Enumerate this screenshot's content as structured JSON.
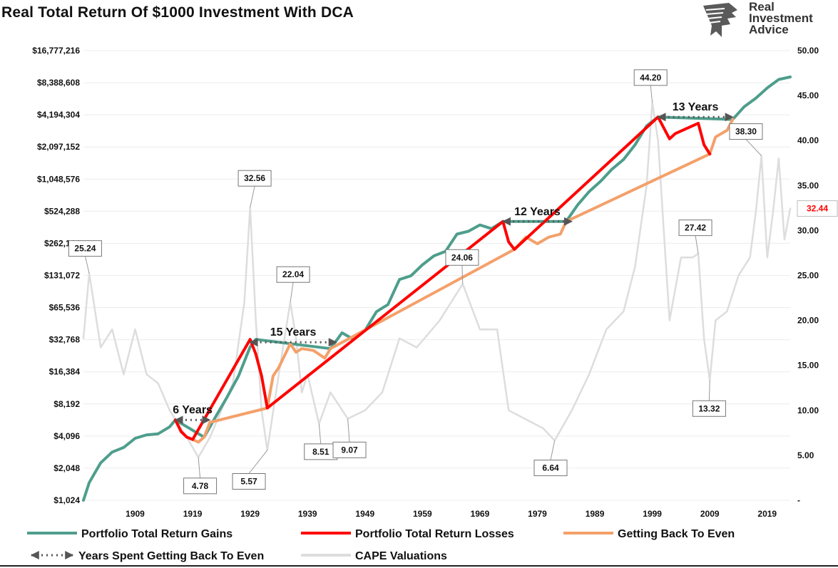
{
  "title": "Real Total Return Of $1000 Investment With DCA",
  "logo": {
    "line1": "Real",
    "line2": "Investment",
    "line3": "Advice"
  },
  "chart_data": {
    "type": "line",
    "title": "Real Total Return Of $1000 Investment With DCA",
    "left_axis": {
      "scale": "log2",
      "ylim": [
        1024,
        16777216
      ],
      "tick_labels": [
        "$16,777,216",
        "$8,388,608",
        "$4,194,304",
        "$2,097,152",
        "$1,048,576",
        "$524,288",
        "$262,144",
        "$131,072",
        "$65,536",
        "$32,768",
        "$16,384",
        "$8,192",
        "$4,096",
        "$2,048",
        "$1,024"
      ]
    },
    "right_axis": {
      "ylim": [
        0,
        50
      ],
      "tick_labels": [
        "50.00",
        "45.00",
        "40.00",
        "35.00",
        "30.00",
        "25.00",
        "20.00",
        "15.00",
        "10.00",
        "5.00",
        "-"
      ]
    },
    "x_axis": {
      "xlim": [
        1900,
        2023
      ],
      "tick_labels": [
        "1909",
        "1919",
        "1929",
        "1939",
        "1949",
        "1959",
        "1969",
        "1979",
        "1989",
        "1999",
        "2009",
        "2019"
      ]
    },
    "grid": true,
    "series": [
      {
        "name": "Portfolio Total Return Gains",
        "color": "#4e9e8c",
        "axis": "left",
        "points": [
          [
            1900,
            1024
          ],
          [
            1901,
            1500
          ],
          [
            1903,
            2300
          ],
          [
            1905,
            2900
          ],
          [
            1907,
            3200
          ],
          [
            1909,
            3900
          ],
          [
            1911,
            4200
          ],
          [
            1913,
            4300
          ],
          [
            1915,
            5000
          ],
          [
            1916,
            5800
          ],
          [
            1921,
            4000
          ],
          [
            1923,
            6200
          ],
          [
            1925,
            9500
          ],
          [
            1927,
            15000
          ],
          [
            1929,
            28000
          ],
          [
            1930,
            33000
          ],
          [
            1943,
            27000
          ],
          [
            1945,
            38000
          ],
          [
            1947,
            33000
          ],
          [
            1949,
            40000
          ],
          [
            1951,
            60000
          ],
          [
            1953,
            70000
          ],
          [
            1955,
            120000
          ],
          [
            1957,
            130000
          ],
          [
            1959,
            165000
          ],
          [
            1961,
            200000
          ],
          [
            1963,
            220000
          ],
          [
            1965,
            320000
          ],
          [
            1967,
            340000
          ],
          [
            1969,
            390000
          ],
          [
            1971,
            360000
          ],
          [
            1973,
            420000
          ],
          [
            1984,
            420000
          ],
          [
            1986,
            600000
          ],
          [
            1988,
            800000
          ],
          [
            1990,
            1000000
          ],
          [
            1992,
            1300000
          ],
          [
            1994,
            1600000
          ],
          [
            1996,
            2200000
          ],
          [
            1998,
            3300000
          ],
          [
            2000,
            4000000
          ],
          [
            2013,
            3800000
          ],
          [
            2015,
            5000000
          ],
          [
            2017,
            6000000
          ],
          [
            2019,
            7500000
          ],
          [
            2021,
            9000000
          ],
          [
            2023,
            9500000
          ]
        ]
      },
      {
        "name": "Portfolio Total Return Losses",
        "color": "#ff0000",
        "axis": "left",
        "points": [
          [
            1916,
            5800
          ],
          [
            1917,
            4500
          ],
          [
            1918,
            4000
          ],
          [
            1919,
            3800
          ],
          [
            1929,
            33000
          ],
          [
            1930,
            24000
          ],
          [
            1931,
            15000
          ],
          [
            1932,
            7500
          ],
          [
            1973,
            420000
          ],
          [
            1974,
            270000
          ],
          [
            1975,
            230000
          ],
          [
            2000,
            4000000
          ],
          [
            2002,
            2500000
          ],
          [
            2003,
            2800000
          ],
          [
            2007,
            3500000
          ],
          [
            2008,
            2200000
          ],
          [
            2009,
            1800000
          ]
        ]
      },
      {
        "name": "Getting Back To Even",
        "color": "#f4a06a",
        "axis": "left",
        "points": [
          [
            1919,
            3800
          ],
          [
            1920,
            3600
          ],
          [
            1921,
            4000
          ],
          [
            1922,
            5500
          ],
          [
            1932,
            7500
          ],
          [
            1933,
            15000
          ],
          [
            1934,
            18000
          ],
          [
            1936,
            30000
          ],
          [
            1937,
            25000
          ],
          [
            1938,
            27000
          ],
          [
            1940,
            26000
          ],
          [
            1942,
            22000
          ],
          [
            1943,
            27000
          ],
          [
            1975,
            230000
          ],
          [
            1977,
            300000
          ],
          [
            1979,
            260000
          ],
          [
            1981,
            300000
          ],
          [
            1983,
            320000
          ],
          [
            1984,
            420000
          ],
          [
            2009,
            1800000
          ],
          [
            2010,
            2600000
          ],
          [
            2012,
            3000000
          ],
          [
            2013,
            3800000
          ]
        ]
      },
      {
        "name": "CAPE Valuations",
        "color": "#dddddd",
        "axis": "right",
        "points": [
          [
            1900,
            18
          ],
          [
            1901,
            25.24
          ],
          [
            1903,
            17
          ],
          [
            1905,
            19
          ],
          [
            1907,
            14
          ],
          [
            1909,
            19
          ],
          [
            1911,
            14
          ],
          [
            1913,
            13
          ],
          [
            1915,
            10
          ],
          [
            1918,
            7
          ],
          [
            1920,
            4.78
          ],
          [
            1922,
            7
          ],
          [
            1924,
            10
          ],
          [
            1926,
            13
          ],
          [
            1928,
            22
          ],
          [
            1929,
            32.56
          ],
          [
            1930,
            20
          ],
          [
            1931,
            10
          ],
          [
            1932,
            5.57
          ],
          [
            1934,
            14
          ],
          [
            1936,
            22.04
          ],
          [
            1937,
            18
          ],
          [
            1938,
            12
          ],
          [
            1939,
            14
          ],
          [
            1941,
            8.51
          ],
          [
            1943,
            12
          ],
          [
            1946,
            9.07
          ],
          [
            1949,
            10
          ],
          [
            1952,
            12
          ],
          [
            1955,
            18
          ],
          [
            1958,
            17
          ],
          [
            1962,
            20
          ],
          [
            1966,
            24.06
          ],
          [
            1969,
            19
          ],
          [
            1972,
            19
          ],
          [
            1974,
            10
          ],
          [
            1977,
            9
          ],
          [
            1980,
            8
          ],
          [
            1982,
            6.64
          ],
          [
            1985,
            10
          ],
          [
            1988,
            14
          ],
          [
            1991,
            19
          ],
          [
            1994,
            21
          ],
          [
            1996,
            26
          ],
          [
            1998,
            35
          ],
          [
            1999,
            44.2
          ],
          [
            2000,
            40
          ],
          [
            2001,
            30
          ],
          [
            2002,
            20
          ],
          [
            2004,
            27
          ],
          [
            2006,
            27
          ],
          [
            2007,
            27.42
          ],
          [
            2008,
            18
          ],
          [
            2009,
            13.32
          ],
          [
            2010,
            20
          ],
          [
            2012,
            21
          ],
          [
            2014,
            25
          ],
          [
            2016,
            27
          ],
          [
            2017,
            32
          ],
          [
            2018,
            38.3
          ],
          [
            2019,
            27
          ],
          [
            2020,
            32
          ],
          [
            2021,
            38
          ],
          [
            2022,
            29
          ],
          [
            2023,
            32.44
          ]
        ]
      }
    ],
    "cape_callouts": [
      {
        "x": 1901,
        "value": "25.24",
        "label_x": 1900.3,
        "label_v": 28.0
      },
      {
        "x": 1920,
        "value": "4.78",
        "label_x": 1920.3,
        "label_v": 1.6
      },
      {
        "x": 1929,
        "value": "32.56",
        "label_x": 1929.8,
        "label_v": 35.8
      },
      {
        "x": 1932,
        "value": "5.57",
        "label_x": 1928.8,
        "label_v": 2.1
      },
      {
        "x": 1936,
        "value": "22.04",
        "label_x": 1936.5,
        "label_v": 25.1
      },
      {
        "x": 1941,
        "value": "8.51",
        "label_x": 1941.3,
        "label_v": 5.4
      },
      {
        "x": 1946,
        "value": "9.07",
        "label_x": 1946.3,
        "label_v": 5.6
      },
      {
        "x": 1966,
        "value": "24.06",
        "label_x": 1965.9,
        "label_v": 27.0
      },
      {
        "x": 1982,
        "value": "6.64",
        "label_x": 1981.3,
        "label_v": 3.6
      },
      {
        "x": 1999,
        "value": "44.20",
        "label_x": 1998.7,
        "label_v": 47.0
      },
      {
        "x": 2007,
        "value": "27.42",
        "label_x": 2006.5,
        "label_v": 30.3
      },
      {
        "x": 2009,
        "value": "13.32",
        "label_x": 2008.9,
        "label_v": 10.2
      },
      {
        "x": 2018,
        "value": "38.30",
        "label_x": 2015.3,
        "label_v": 41.0
      }
    ],
    "recovery_periods": [
      {
        "label": "6 Years",
        "start": 1916,
        "end": 1922,
        "value": 5800
      },
      {
        "label": "15 Years",
        "start": 1929,
        "end": 1944,
        "value": 31000
      },
      {
        "label": "12 Years",
        "start": 1973,
        "end": 1985,
        "value": 420000
      },
      {
        "label": "13 Years",
        "start": 2000,
        "end": 2013,
        "value": 4000000
      }
    ],
    "current_value_label": {
      "value": "32.44",
      "color": "#ff0000"
    },
    "legend": [
      {
        "name": "Portfolio Total Return Gains",
        "kind": "line",
        "color": "#4e9e8c"
      },
      {
        "name": "Portfolio Total Return Losses",
        "kind": "line",
        "color": "#ff0000"
      },
      {
        "name": "Getting Back To Even",
        "kind": "line",
        "color": "#f4a06a"
      },
      {
        "name": "Years Spent Getting Back To Even",
        "kind": "arrow",
        "color": "#555555"
      },
      {
        "name": "CAPE Valuations",
        "kind": "line",
        "color": "#dddddd"
      }
    ],
    "legend_position": "bottom"
  }
}
